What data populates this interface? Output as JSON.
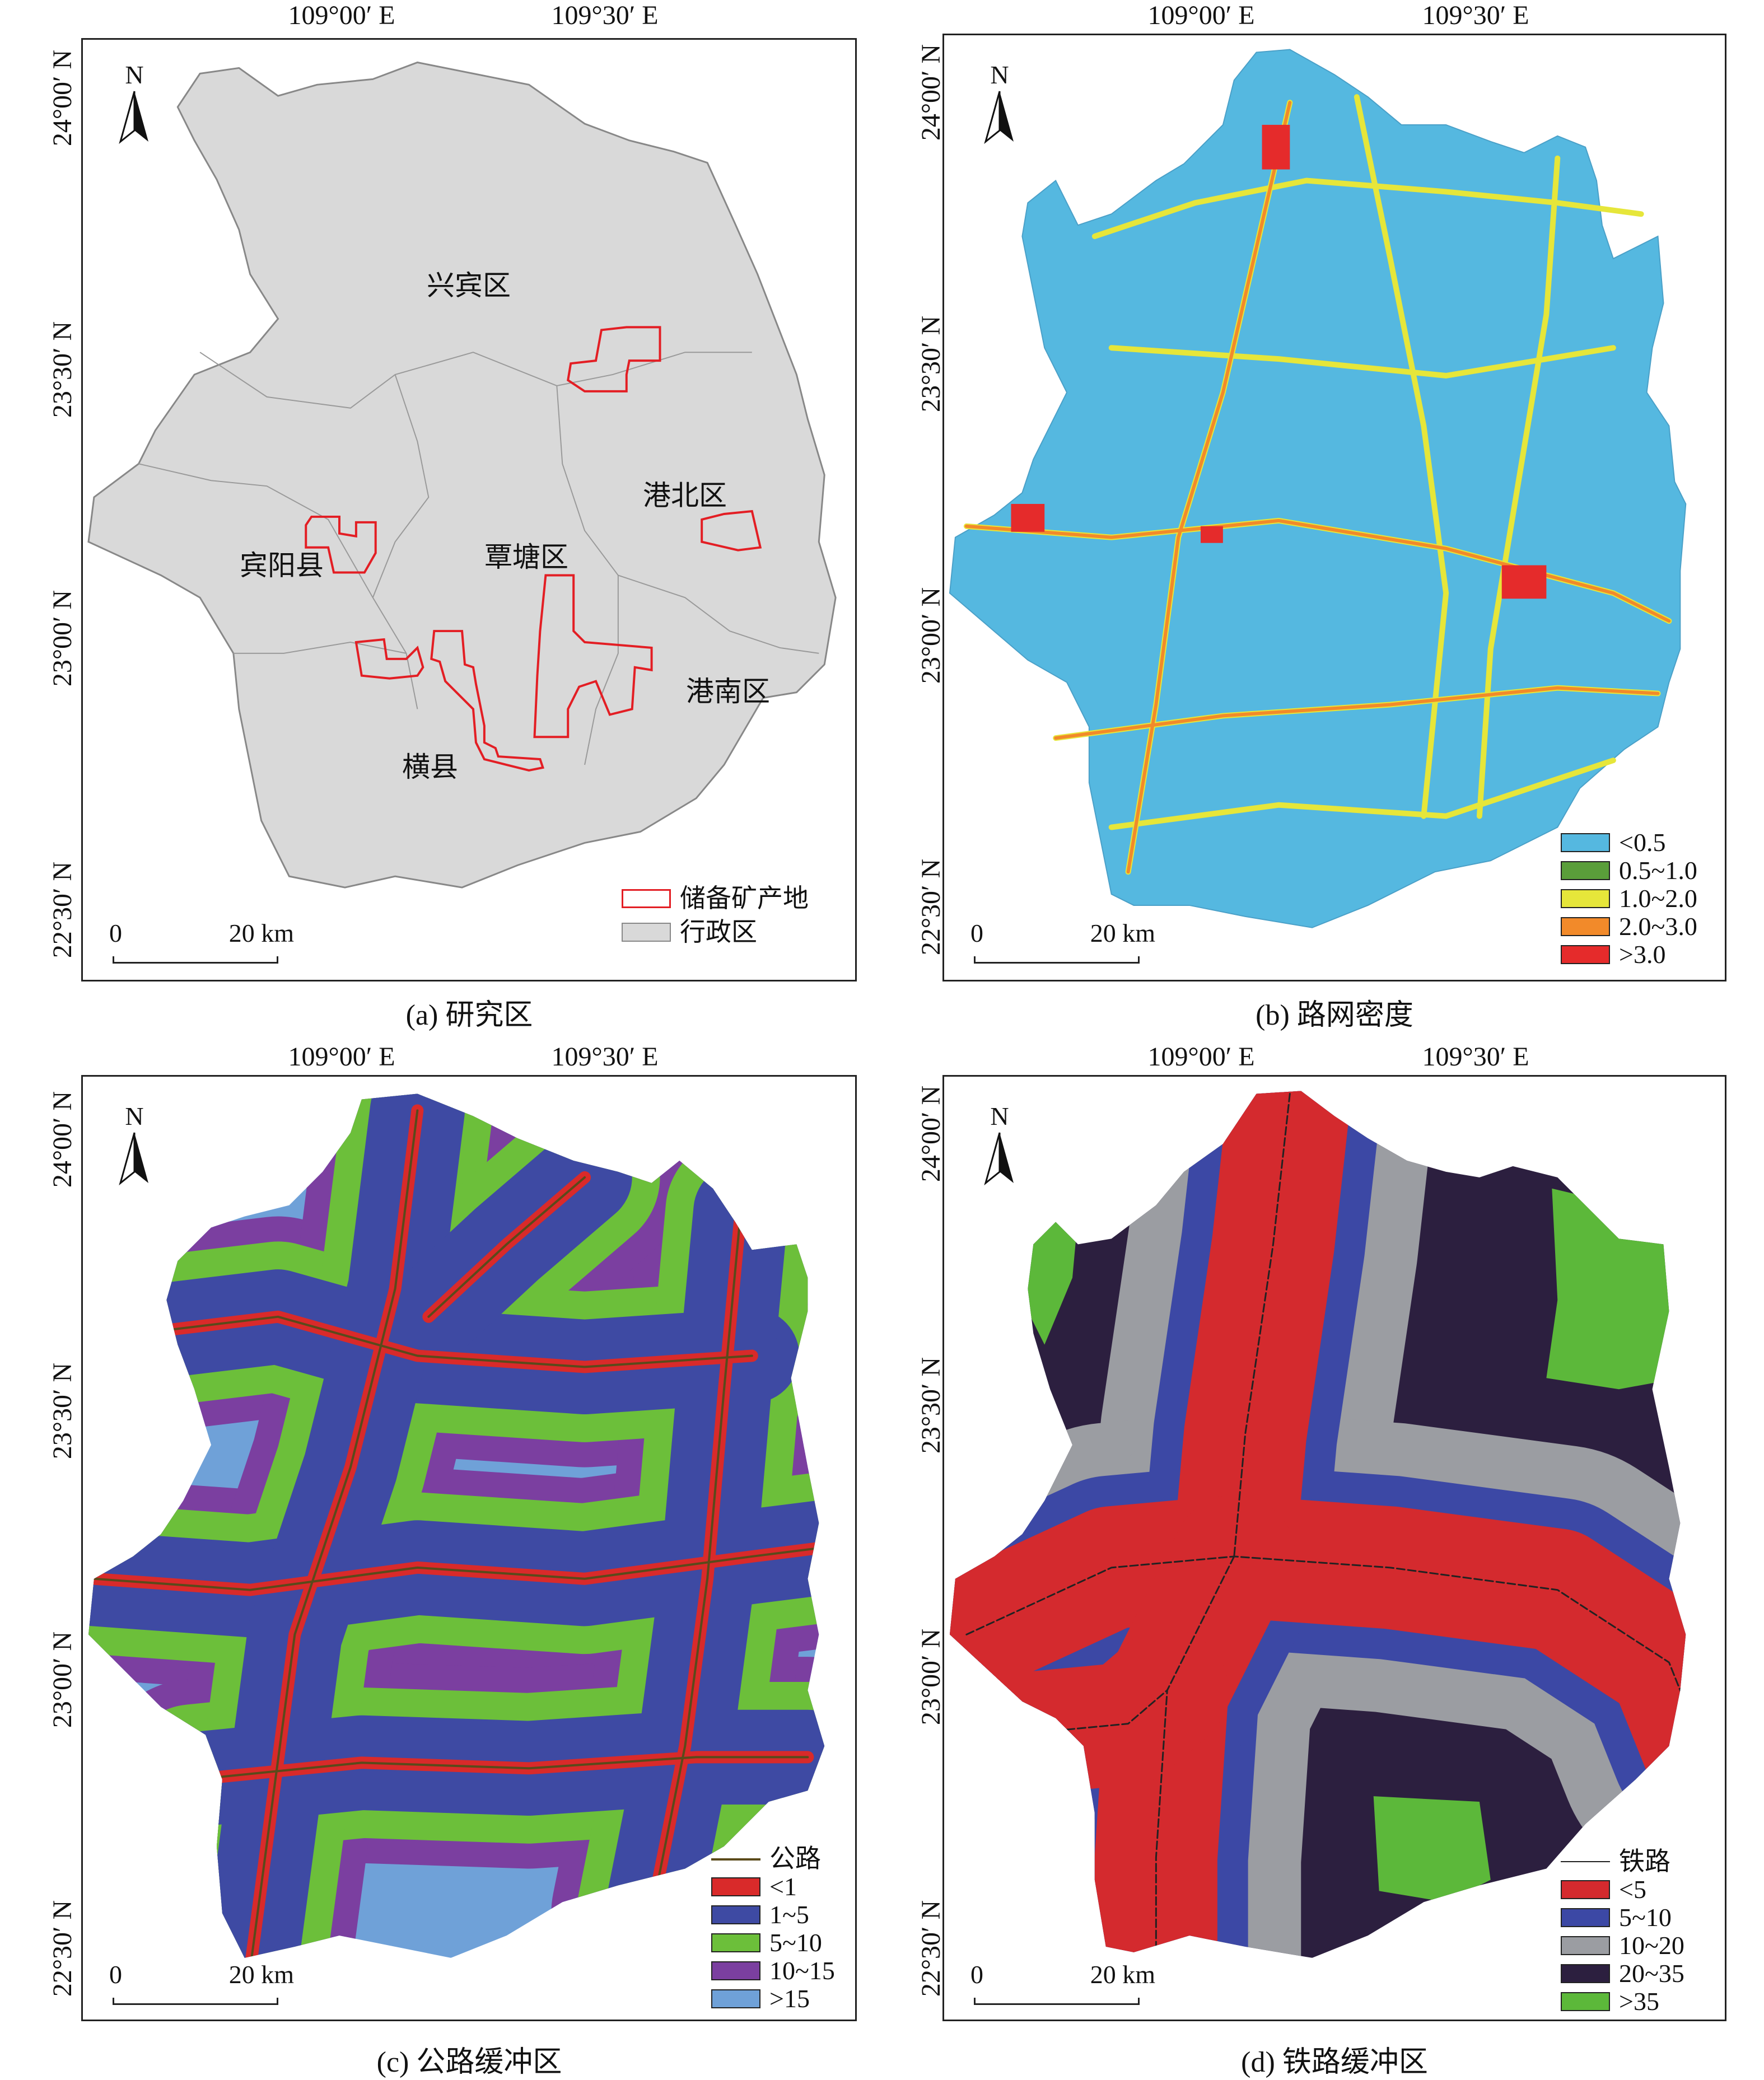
{
  "axes": {
    "lon_ticks": [
      "109°00′ E",
      "109°30′ E"
    ],
    "lat_ticks": [
      "24°00′ N",
      "23°30′ N",
      "23°00′ N",
      "22°30′ N"
    ]
  },
  "north_label": "N",
  "scale": {
    "zero": "0",
    "end": "20 km"
  },
  "panels": {
    "a": {
      "caption": "(a) 研究区",
      "regions": [
        "兴宾区",
        "港北区",
        "宾阳县",
        "覃塘区",
        "港南区",
        "横县"
      ],
      "legend": [
        {
          "label": "储备矿产地",
          "color": "#e31e24"
        },
        {
          "label": "行政区",
          "color": "#d9d9d9"
        }
      ]
    },
    "b": {
      "caption": "(b) 路网密度",
      "legend": [
        {
          "label": "<0.5",
          "color": "#55b8e0"
        },
        {
          "label": "0.5~1.0",
          "color": "#5a9e3a"
        },
        {
          "label": "1.0~2.0",
          "color": "#e6e63a"
        },
        {
          "label": "2.0~3.0",
          "color": "#f28a2a"
        },
        {
          "label": ">3.0",
          "color": "#e52b2b"
        }
      ]
    },
    "c": {
      "caption": "(c) 公路缓冲区",
      "line_legend": {
        "label": "公路",
        "color": "#5a4a1a"
      },
      "legend": [
        {
          "label": "<1",
          "color": "#d92a2a"
        },
        {
          "label": "1~5",
          "color": "#3e4aa3"
        },
        {
          "label": "5~10",
          "color": "#6cbf3a"
        },
        {
          "label": "10~15",
          "color": "#7b3fa0"
        },
        {
          "label": ">15",
          "color": "#6fa1d8"
        }
      ]
    },
    "d": {
      "caption": "(d) 铁路缓冲区",
      "line_legend": {
        "label": "铁路",
        "color": "#222222"
      },
      "legend": [
        {
          "label": "<5",
          "color": "#d42a2e"
        },
        {
          "label": "5~10",
          "color": "#3c48a5"
        },
        {
          "label": "10~20",
          "color": "#9b9da2"
        },
        {
          "label": "20~35",
          "color": "#2c1f3f"
        },
        {
          "label": ">35",
          "color": "#5cb83a"
        }
      ]
    }
  }
}
